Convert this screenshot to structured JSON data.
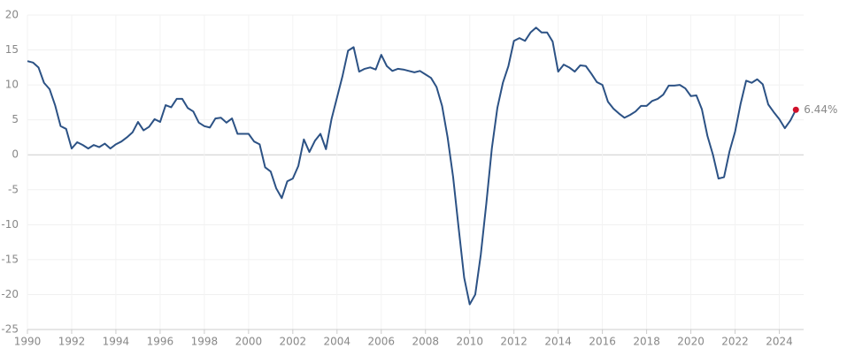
{
  "chart_data": {
    "type": "line",
    "x": [
      1990,
      1990.25,
      1990.5,
      1990.75,
      1991,
      1991.25,
      1991.5,
      1991.75,
      1992,
      1992.25,
      1992.5,
      1992.75,
      1993,
      1993.25,
      1993.5,
      1993.75,
      1994,
      1994.25,
      1994.5,
      1994.75,
      1995,
      1995.25,
      1995.5,
      1995.75,
      1996,
      1996.25,
      1996.5,
      1996.75,
      1997,
      1997.25,
      1997.5,
      1997.75,
      1998,
      1998.25,
      1998.5,
      1998.75,
      1999,
      1999.25,
      1999.5,
      1999.75,
      2000,
      2000.25,
      2000.5,
      2000.75,
      2001,
      2001.25,
      2001.5,
      2001.75,
      2002,
      2002.25,
      2002.5,
      2002.75,
      2003,
      2003.25,
      2003.5,
      2003.75,
      2004,
      2004.25,
      2004.5,
      2004.75,
      2005,
      2005.25,
      2005.5,
      2005.75,
      2006,
      2006.25,
      2006.5,
      2006.75,
      2007,
      2007.25,
      2007.5,
      2007.75,
      2008,
      2008.25,
      2008.5,
      2008.75,
      2009,
      2009.25,
      2009.5,
      2009.75,
      2010,
      2010.25,
      2010.5,
      2010.75,
      2011,
      2011.25,
      2011.5,
      2011.75,
      2012,
      2012.25,
      2012.5,
      2012.75,
      2013,
      2013.25,
      2013.5,
      2013.75,
      2014,
      2014.25,
      2014.5,
      2014.75,
      2015,
      2015.25,
      2015.5,
      2015.75,
      2016,
      2016.25,
      2016.5,
      2016.75,
      2017,
      2017.25,
      2017.5,
      2017.75,
      2018,
      2018.25,
      2018.5,
      2018.75,
      2019,
      2019.25,
      2019.5,
      2019.75,
      2020,
      2020.25,
      2020.5,
      2020.75,
      2021,
      2021.25,
      2021.5,
      2021.75,
      2022,
      2022.25,
      2022.5,
      2022.75,
      2023,
      2023.25,
      2023.5,
      2023.75,
      2024,
      2024.25,
      2024.5,
      2024.75
    ],
    "values": [
      13.4,
      13.2,
      12.5,
      10.3,
      9.4,
      7.1,
      4.1,
      3.7,
      0.9,
      1.8,
      1.4,
      0.9,
      1.4,
      1.1,
      1.6,
      0.9,
      1.5,
      1.9,
      2.5,
      3.2,
      4.7,
      3.5,
      4.0,
      5.1,
      4.7,
      7.1,
      6.8,
      8.0,
      8.0,
      6.7,
      6.2,
      4.6,
      4.1,
      3.9,
      5.2,
      5.3,
      4.6,
      5.2,
      3.0,
      3.0,
      3.0,
      1.9,
      1.5,
      -1.8,
      -2.4,
      -4.8,
      -6.2,
      -3.8,
      -3.4,
      -1.6,
      2.2,
      0.4,
      2.0,
      3.0,
      0.8,
      5.1,
      8.2,
      11.3,
      14.9,
      15.4,
      11.9,
      12.3,
      12.5,
      12.2,
      14.3,
      12.7,
      12.0,
      12.3,
      12.2,
      12.0,
      11.8,
      12.0,
      11.5,
      11.0,
      9.7,
      7.0,
      2.5,
      -3.2,
      -10.5,
      -17.6,
      -21.4,
      -20.0,
      -14.3,
      -7.0,
      0.9,
      6.7,
      10.3,
      12.7,
      16.3,
      16.7,
      16.3,
      17.5,
      18.2,
      17.5,
      17.5,
      16.2,
      11.9,
      12.9,
      12.5,
      11.9,
      12.8,
      12.7,
      11.6,
      10.4,
      10.0,
      7.6,
      6.6,
      5.9,
      5.3,
      5.7,
      6.2,
      7.0,
      7.0,
      7.7,
      8.0,
      8.6,
      9.9,
      9.9,
      10.0,
      9.5,
      8.4,
      8.5,
      6.5,
      2.7,
      0.0,
      -3.4,
      -3.2,
      0.5,
      3.3,
      7.3,
      10.6,
      10.3,
      10.8,
      10.1,
      7.2,
      6.1,
      5.1,
      3.8,
      4.9,
      6.44
    ],
    "value_labels": [
      null,
      null,
      null,
      null,
      null,
      null,
      null,
      null,
      null,
      null,
      null,
      null,
      null,
      null,
      null,
      null,
      null,
      null,
      null,
      null,
      null,
      null,
      null,
      null,
      null,
      null,
      null,
      null,
      null,
      null,
      null,
      null,
      null,
      null,
      null,
      null,
      null,
      null,
      null,
      null,
      null,
      null,
      null,
      null,
      null,
      null,
      null,
      null,
      null,
      null,
      null,
      null,
      null,
      null,
      null,
      null,
      null,
      null,
      null,
      null,
      null,
      null,
      null,
      null,
      null,
      null,
      null,
      null,
      null,
      null,
      null,
      null,
      null,
      null,
      null,
      null,
      null,
      null,
      null,
      null,
      null,
      null,
      null,
      null,
      null,
      null,
      null,
      null,
      null,
      null,
      null,
      null,
      null,
      null,
      null,
      null,
      null,
      null,
      null,
      null,
      null,
      null,
      null,
      null,
      null,
      null,
      null,
      null,
      null,
      null,
      null,
      null,
      null,
      null,
      null,
      null,
      null,
      null,
      null,
      null,
      null,
      null,
      null,
      null,
      null,
      null,
      null,
      null,
      null,
      null,
      null,
      null,
      null,
      null,
      null,
      null,
      null,
      null,
      null,
      "6.44%"
    ],
    "color": "#2c5285",
    "marker_color": "#d0102a",
    "xlim": [
      1990,
      2025.1
    ],
    "xticks": [
      1990,
      1992,
      1994,
      1996,
      1998,
      2000,
      2002,
      2004,
      2006,
      2008,
      2010,
      2012,
      2014,
      2016,
      2018,
      2020,
      2022,
      2024
    ],
    "ylim": [
      -25,
      20
    ],
    "yticks": [
      -25,
      -20,
      -15,
      -10,
      -5,
      0,
      5,
      10,
      15,
      20
    ],
    "grid": true
  }
}
